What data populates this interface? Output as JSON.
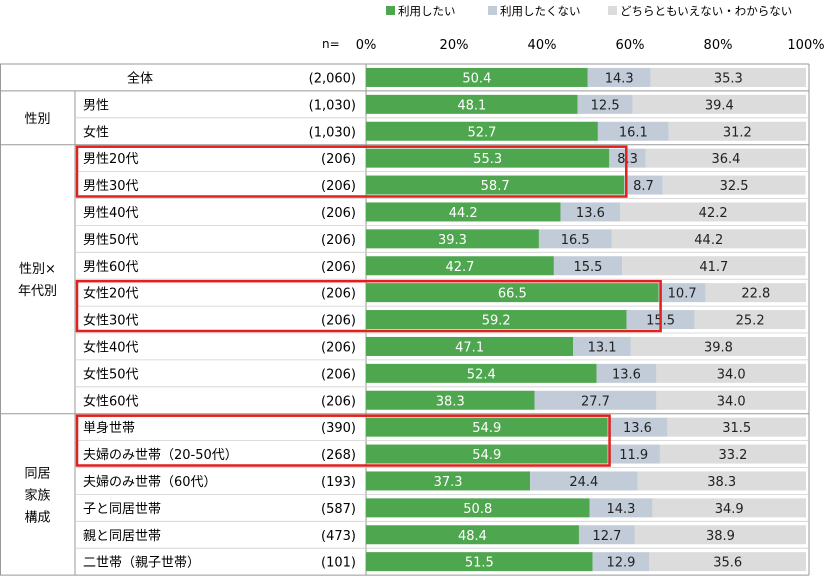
{
  "colors": {
    "use": "#4ea64e",
    "notuse": "#c2ccd8",
    "unknown": "#dcdcdc",
    "highlight": "#e0211d",
    "grid": "#999999"
  },
  "n_label": "n=",
  "chart_data": {
    "type": "bar",
    "orientation": "horizontal",
    "stacked": true,
    "xlim": [
      0,
      100
    ],
    "xticks": [
      "0%",
      "20%",
      "40%",
      "60%",
      "80%",
      "100%"
    ],
    "legend_position": "top-right",
    "series": [
      {
        "name": "利用したい",
        "values": [
          50.4,
          48.1,
          52.7,
          55.3,
          58.7,
          44.2,
          39.3,
          42.7,
          66.5,
          59.2,
          47.1,
          52.4,
          38.3,
          54.9,
          54.9,
          37.3,
          50.8,
          48.4,
          51.5
        ]
      },
      {
        "name": "利用したくない",
        "values": [
          14.3,
          12.5,
          16.1,
          8.3,
          8.7,
          13.6,
          16.5,
          15.5,
          10.7,
          15.5,
          13.1,
          13.6,
          27.7,
          13.6,
          11.9,
          24.4,
          14.3,
          12.7,
          12.9
        ]
      },
      {
        "name": "どちらともいえない・わからない",
        "values": [
          35.3,
          39.4,
          31.2,
          36.4,
          32.5,
          42.2,
          44.2,
          41.7,
          22.8,
          25.2,
          39.8,
          34.0,
          34.0,
          31.5,
          33.2,
          38.3,
          34.9,
          38.9,
          35.6
        ]
      }
    ],
    "rows": [
      {
        "group": "",
        "label": "全体",
        "n": "(2,060)"
      },
      {
        "group": "性別",
        "label": "男性",
        "n": "(1,030)"
      },
      {
        "group": "性別",
        "label": "女性",
        "n": "(1,030)"
      },
      {
        "group": "性別×年代別",
        "label": "男性20代",
        "n": "(206)"
      },
      {
        "group": "性別×年代別",
        "label": "男性30代",
        "n": "(206)"
      },
      {
        "group": "性別×年代別",
        "label": "男性40代",
        "n": "(206)"
      },
      {
        "group": "性別×年代別",
        "label": "男性50代",
        "n": "(206)"
      },
      {
        "group": "性別×年代別",
        "label": "男性60代",
        "n": "(206)"
      },
      {
        "group": "性別×年代別",
        "label": "女性20代",
        "n": "(206)"
      },
      {
        "group": "性別×年代別",
        "label": "女性30代",
        "n": "(206)"
      },
      {
        "group": "性別×年代別",
        "label": "女性40代",
        "n": "(206)"
      },
      {
        "group": "性別×年代別",
        "label": "女性50代",
        "n": "(206)"
      },
      {
        "group": "性別×年代別",
        "label": "女性60代",
        "n": "(206)"
      },
      {
        "group": "同居家族構成",
        "label": "単身世帯",
        "n": "(390)"
      },
      {
        "group": "同居家族構成",
        "label": "夫婦のみ世帯（20-50代）",
        "n": "(268)"
      },
      {
        "group": "同居家族構成",
        "label": "夫婦のみ世帯（60代）",
        "n": "(193)"
      },
      {
        "group": "同居家族構成",
        "label": "子と同居世帯",
        "n": "(587)"
      },
      {
        "group": "同居家族構成",
        "label": "親と同居世帯",
        "n": "(473)"
      },
      {
        "group": "同居家族構成",
        "label": "二世帯（親子世帯）",
        "n": "(101)"
      }
    ],
    "groups": [
      {
        "name": "全体",
        "lines": []
      },
      {
        "name": "性別",
        "lines": [
          "性別"
        ]
      },
      {
        "name": "性別×年代別",
        "lines": [
          "性別×",
          "年代別"
        ]
      },
      {
        "name": "同居家族構成",
        "lines": [
          "同居",
          "家族",
          "構成"
        ]
      }
    ],
    "highlight_boxes": [
      [
        3,
        4
      ],
      [
        8,
        9
      ],
      [
        13,
        14
      ]
    ]
  }
}
